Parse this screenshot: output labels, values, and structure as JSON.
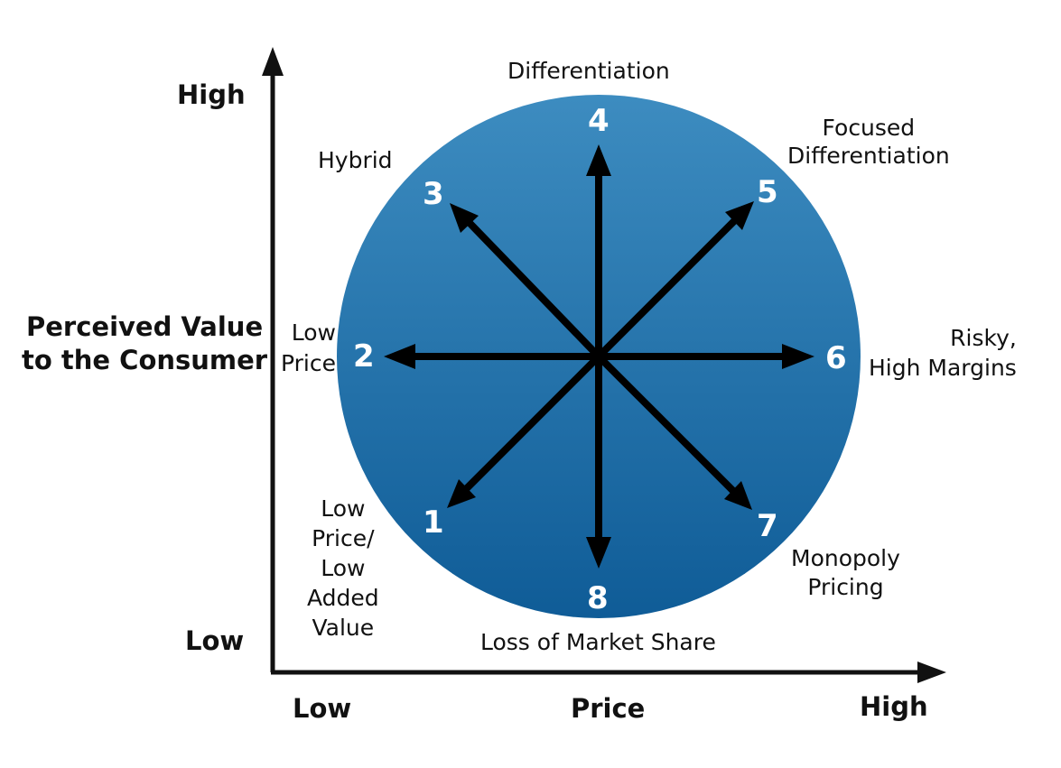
{
  "axes": {
    "y_title": "Perceived Value\nto the Consumer",
    "y_high": "High",
    "y_low": "Low",
    "x_title": "Price",
    "x_low": "Low",
    "x_high": "High"
  },
  "circle_color": "#1f6fa8",
  "strategies": [
    {
      "number": "1",
      "label": "Low\nPrice/\nLow\nAdded\nValue"
    },
    {
      "number": "2",
      "label": "Low\nPrice"
    },
    {
      "number": "3",
      "label": "Hybrid"
    },
    {
      "number": "4",
      "label": "Differentiation"
    },
    {
      "number": "5",
      "label": "Focused\nDifferentiation"
    },
    {
      "number": "6",
      "label": "Risky,\nHigh Margins"
    },
    {
      "number": "7",
      "label": "Monopoly\nPricing"
    },
    {
      "number": "8",
      "label": "Loss of Market Share"
    }
  ]
}
